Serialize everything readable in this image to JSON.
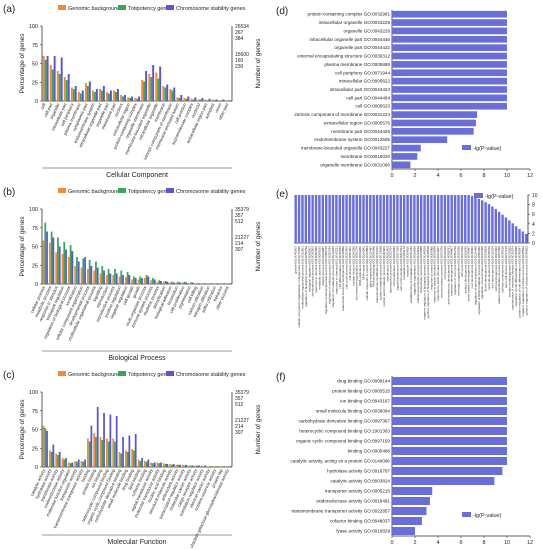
{
  "colors": {
    "genomic": "#f08a3c",
    "totipotency": "#3aa65b",
    "chromosome": "#5b57c9",
    "hbar": "#6a6fd8",
    "axis": "#333333",
    "text": "#222222"
  },
  "legend_left": [
    "Genomic background",
    "Totipotency genes",
    "Chromosome stability genes"
  ],
  "chart_data": [
    {
      "panel": "(a)",
      "type": "bar",
      "xlabel": "Cellular Component",
      "ylabel": "Percentage of genes",
      "ylabel_right": "Number of genes",
      "yticks": [
        "0",
        "25",
        "50",
        "75",
        "100"
      ],
      "ylim": [
        0,
        100
      ],
      "right_ticks_top": [
        "26534",
        "267",
        "384"
      ],
      "right_ticks_mid": [
        "15600",
        "160",
        "230"
      ],
      "categories": [
        "cell",
        "cell part",
        "organelle",
        "intracellular part",
        "cell periphery",
        "plasma membrane",
        "cytoplasmic part",
        "endomembrane system",
        "intracellular organelle part",
        "organelle part",
        "membrane part",
        "nucleus",
        "extracellular region",
        "protein-containing complex",
        "organelle membrane",
        "membrane-bounded organelle",
        "intracellular organelle",
        "membrane",
        "intrinsic component of membrane",
        "membrane-enclosed lumen",
        "cell junction",
        "supramolecular complex",
        "nucleoid",
        "extracellular region part",
        "symplast",
        "virion",
        "other part"
      ],
      "series": [
        {
          "name": "Genomic background",
          "values": [
            60,
            48,
            40,
            32,
            18,
            12,
            24,
            14,
            16,
            12,
            14,
            8,
            5,
            4,
            28,
            36,
            38,
            20,
            16,
            5,
            4,
            3,
            2,
            2,
            2,
            1,
            1
          ]
        },
        {
          "name": "Totipotency genes",
          "values": [
            55,
            42,
            36,
            28,
            16,
            10,
            20,
            12,
            14,
            10,
            12,
            6,
            4,
            3,
            26,
            32,
            30,
            18,
            14,
            4,
            3,
            2,
            2,
            1,
            1,
            1,
            1
          ]
        },
        {
          "name": "Chromosome stability genes",
          "values": [
            60,
            60,
            58,
            36,
            20,
            14,
            26,
            16,
            20,
            14,
            16,
            8,
            6,
            6,
            40,
            48,
            46,
            22,
            18,
            8,
            6,
            5,
            4,
            3,
            2,
            2,
            1
          ]
        }
      ]
    },
    {
      "panel": "(b)",
      "type": "bar",
      "xlabel": "Biological Process",
      "ylabel": "Percentage of genes",
      "ylabel_right": "Number of genes",
      "yticks": [
        "0",
        "25",
        "50",
        "75",
        "100"
      ],
      "ylim": [
        0,
        100
      ],
      "right_ticks_top": [
        "35379",
        "357",
        "512"
      ],
      "right_ticks_mid": [
        "21227",
        "214",
        "307"
      ],
      "categories": [
        "cellular process",
        "metabolic process",
        "response to stimulus",
        "biological regulation",
        "regulation of biological process",
        "localization",
        "cellular component organization",
        "developmental process",
        "multicellular organismal process",
        "signaling",
        "reproduction",
        "reproductive process",
        "positive regulation",
        "negative regulation",
        "cell growth",
        "growth",
        "multi-organism process",
        "immune system process",
        "rhythmic process",
        "detoxification",
        "biological adhesion",
        "locomotion",
        "cell proliferation",
        "pigmentation",
        "cell killing",
        "carbon utilization",
        "nitrogen utilization",
        "sulfur utilization",
        "behavior",
        "other process"
      ],
      "series": [
        {
          "name": "Genomic background",
          "values": [
            58,
            55,
            42,
            40,
            36,
            24,
            22,
            20,
            18,
            14,
            12,
            12,
            10,
            9,
            6,
            6,
            8,
            5,
            3,
            3,
            2,
            2,
            2,
            1,
            1,
            1,
            1,
            1,
            1,
            1
          ]
        },
        {
          "name": "Totipotency genes",
          "values": [
            82,
            70,
            62,
            56,
            52,
            36,
            34,
            32,
            30,
            24,
            20,
            20,
            18,
            16,
            10,
            10,
            12,
            8,
            5,
            4,
            3,
            3,
            3,
            2,
            1,
            1,
            1,
            1,
            1,
            1
          ]
        },
        {
          "name": "Chromosome stability genes",
          "values": [
            70,
            62,
            50,
            46,
            44,
            30,
            36,
            24,
            22,
            18,
            14,
            14,
            12,
            12,
            8,
            8,
            10,
            6,
            4,
            3,
            2,
            2,
            2,
            2,
            1,
            1,
            1,
            1,
            1,
            1
          ]
        }
      ]
    },
    {
      "panel": "(c)",
      "type": "bar",
      "xlabel": "Molecular Function",
      "ylabel": "Percentage of genes",
      "ylabel_right": "Number of genes",
      "yticks": [
        "0",
        "25",
        "50",
        "75",
        "100"
      ],
      "ylim": [
        0,
        100
      ],
      "right_ticks_top": [
        "35379",
        "357",
        "512"
      ],
      "right_ticks_mid": [
        "21227",
        "214",
        "307"
      ],
      "categories": [
        "catalytic activity",
        "hydrolase activity",
        "transferase activity",
        "oxidoreductase activity",
        "molecular function regulator",
        "transporter activity",
        "transmembrane transporter activity",
        "binding",
        "protein binding",
        "ion binding",
        "heterocyclic compound binding",
        "organic cyclic compound binding",
        "carbohydrate derivative binding",
        "small molecule binding",
        "drug binding",
        "lipid binding",
        "cofactor binding",
        "signal transducer activity",
        "molecular transducer activity",
        "nucleic acid binding",
        "structural molecule activity",
        "antioxidant activity",
        "transcription regulator activity",
        "molecular carrier activity",
        "cargo receptor activity",
        "translation regulator activity",
        "electron carrier activity",
        "nutrient reservoir activity",
        "protein tag",
        "obsolete galactose-glucosyltransferase activity"
      ],
      "series": [
        {
          "name": "Genomic background",
          "values": [
            55,
            22,
            18,
            12,
            6,
            8,
            8,
            38,
            45,
            40,
            38,
            38,
            20,
            22,
            24,
            10,
            8,
            6,
            6,
            5,
            4,
            3,
            3,
            2,
            2,
            2,
            1,
            1,
            1,
            1
          ]
        },
        {
          "name": "Totipotency genes",
          "values": [
            52,
            20,
            16,
            10,
            5,
            7,
            7,
            34,
            40,
            36,
            34,
            34,
            18,
            20,
            22,
            8,
            7,
            5,
            5,
            4,
            3,
            3,
            2,
            2,
            2,
            1,
            1,
            1,
            1,
            1
          ]
        },
        {
          "name": "Chromosome stability genes",
          "values": [
            48,
            30,
            20,
            12,
            6,
            10,
            10,
            55,
            80,
            72,
            70,
            68,
            40,
            42,
            44,
            12,
            10,
            6,
            6,
            4,
            4,
            3,
            3,
            2,
            2,
            2,
            1,
            1,
            1,
            1
          ]
        }
      ]
    },
    {
      "panel": "(d)",
      "type": "bar",
      "orientation": "horizontal",
      "legend": "-lg(P-value)",
      "xticks": [
        "0",
        "2",
        "4",
        "6",
        "8",
        "10",
        "12"
      ],
      "xlim": [
        0,
        12
      ],
      "categories": [
        "protein-containing complex GO:0032991",
        "intracellular organelle GO:0043229",
        "organelle GO:0043226",
        "intracellular organelle part GO:0044446",
        "organelle part GO:0044422",
        "external encapsulating structure GO:0030312",
        "plasma membrane GO:0005886",
        "cell periphery GO:0071944",
        "intracellular GO:0005622",
        "intracellular part GO:0044424",
        "cell part GO:0044464",
        "cell GO:0005623",
        "intrinsic component of membrane GO:0031224",
        "extracellular region GO:0005576",
        "membrane part GO:0044425",
        "endomembrane system GO:0012505",
        "membrane-bounded organelle GO:0043227",
        "membrane GO:0016020",
        "organelle membrane GO:0031090"
      ],
      "values": [
        10,
        10,
        10,
        10,
        10,
        10,
        10,
        10,
        10,
        10,
        10,
        10,
        7.4,
        7.3,
        7.1,
        4.8,
        2.5,
        2.2,
        1.6
      ]
    },
    {
      "panel": "(e)",
      "type": "bar",
      "legend": "-lg(P-value)",
      "yticks": [
        "0",
        "2",
        "4",
        "6",
        "8",
        "10"
      ],
      "ylim": [
        0,
        10
      ],
      "categories": [
        "growth GO:0040007",
        "cellular component organization or biogenesis GO:0071840",
        "multicellular organismal process GO:0032501",
        "regulation of biological process GO:0050789",
        "biological regulation GO:0065007",
        "developmental process GO:0032502",
        "response to stimulus GO:0050896",
        "metabolic process GO:0008152",
        "cellular process GO:0009987",
        "regulation of developmental process GO:0050793",
        "regulation of cellular process GO:0050794",
        "regulation of metabolic process GO:0019222",
        "response to chemical GO:0042221",
        "cell differentiation GO:0030154",
        "anatomical structure development GO:0048856",
        "cell cycle process GO:0022402",
        "cell division GO:0051301",
        "nuclear division GO:0000280",
        "chromosome organization GO:0051276",
        "DNA replication GO:0006260",
        "DNA repair GO:0006281",
        "cellular response to stress GO:0033554",
        "gene expression GO:0010467",
        "RNA processing GO:0006396",
        "macromolecule modification GO:0043412",
        "protein metabolic process GO:0019538",
        "nucleic acid metabolic process GO:0090304",
        "reproduction GO:0000003",
        "reproductive process GO:0022414",
        "cell proliferation GO:0008283",
        "signal transduction GO:0007165",
        "cell communication GO:0007154",
        "localization GO:0051179",
        "transport GO:0006810",
        "establishment of localization GO:0051234",
        "organelle organization GO:0006996",
        "cellular biosynthetic process GO:0044249",
        "biosynthetic process GO:0009058",
        "negative regulation of biological process GO:0048519",
        "positive regulation of biological process GO:0048518",
        "response to stress GO:0006950",
        "response to abiotic stimulus GO:0009628",
        "response to biotic stimulus GO:0009607",
        "immune system process GO:0002376",
        "cell growth GO:0016049",
        "post-embryonic development GO:0009791",
        "meristem development GO:0048507",
        "regulation of cell cycle GO:0051726",
        "chromatin organization GO:0006325",
        "cell cycle GO:0007049",
        "embryo development GO:0009790",
        "shoot system development GO:0048367",
        "root development GO:0048364",
        "regulation of gene expression GO:0010468",
        "regulation of RNA metabolic process GO:0051252",
        "regulation of transcription GO:0006355",
        "flower development GO:0009908",
        "seed development GO:0048316",
        "fruit development GO:0010154",
        "cell morphogenesis GO:0000902",
        "pattern specification process GO:0007389",
        "cell fate commitment GO:0045165",
        "stem cell division GO:0017145",
        "somatic embryogenesis GO:0010262",
        "maintenance of meristem identity GO:0010074",
        "regulation of cell differentiation GO:0045595",
        "positive regulation of cell differentiation GO:0045597",
        "negative regulation of cellular process GO:0048523",
        "positive regulation of cellular process GO:0048522"
      ],
      "values": [
        10,
        10,
        10,
        10,
        10,
        10,
        10,
        10,
        10,
        10,
        10,
        10,
        10,
        10,
        10,
        10,
        10,
        10,
        10,
        10,
        10,
        10,
        10,
        10,
        10,
        10,
        10,
        10,
        10,
        10,
        10,
        10,
        10,
        10,
        10,
        10,
        10,
        10,
        10,
        10,
        10,
        10,
        10,
        10,
        10,
        10,
        10,
        10,
        10,
        10,
        10,
        10,
        9.8,
        9.5,
        9.2,
        8.9,
        8.5,
        8.1,
        7.6,
        7.1,
        6.5,
        5.9,
        5.3,
        4.7,
        4.1,
        3.5,
        2.9,
        2.4,
        1.9
      ]
    },
    {
      "panel": "(f)",
      "type": "bar",
      "orientation": "horizontal",
      "legend": "-lg(P-value)",
      "xticks": [
        "0",
        "2",
        "4",
        "6",
        "8",
        "10",
        "12"
      ],
      "xlim": [
        0,
        12
      ],
      "categories": [
        "drug binding GO:0008144",
        "protein binding GO:0005515",
        "ion binding GO:0043167",
        "small molecule binding GO:0036094",
        "carbohydrate derivative binding GO:0097367",
        "heterocyclic compound binding GO:1901363",
        "organic cyclic compound binding GO:0097159",
        "binding GO:0005488",
        "catalytic activity, acting on a protein GO:0140096",
        "hydrolase activity GO:0016787",
        "catalytic activity GO:0003824",
        "transporter activity GO:0005215",
        "oxidoreductase activity GO:0016491",
        "transmembrane transporter activity GO:0022857",
        "cofactor binding GO:0048037",
        "lyase activity GO:0016829"
      ],
      "values": [
        10,
        10,
        10,
        10,
        10,
        10,
        10,
        10,
        10,
        9.6,
        8.9,
        3.5,
        3.3,
        3.0,
        2.6,
        2.0
      ]
    }
  ]
}
